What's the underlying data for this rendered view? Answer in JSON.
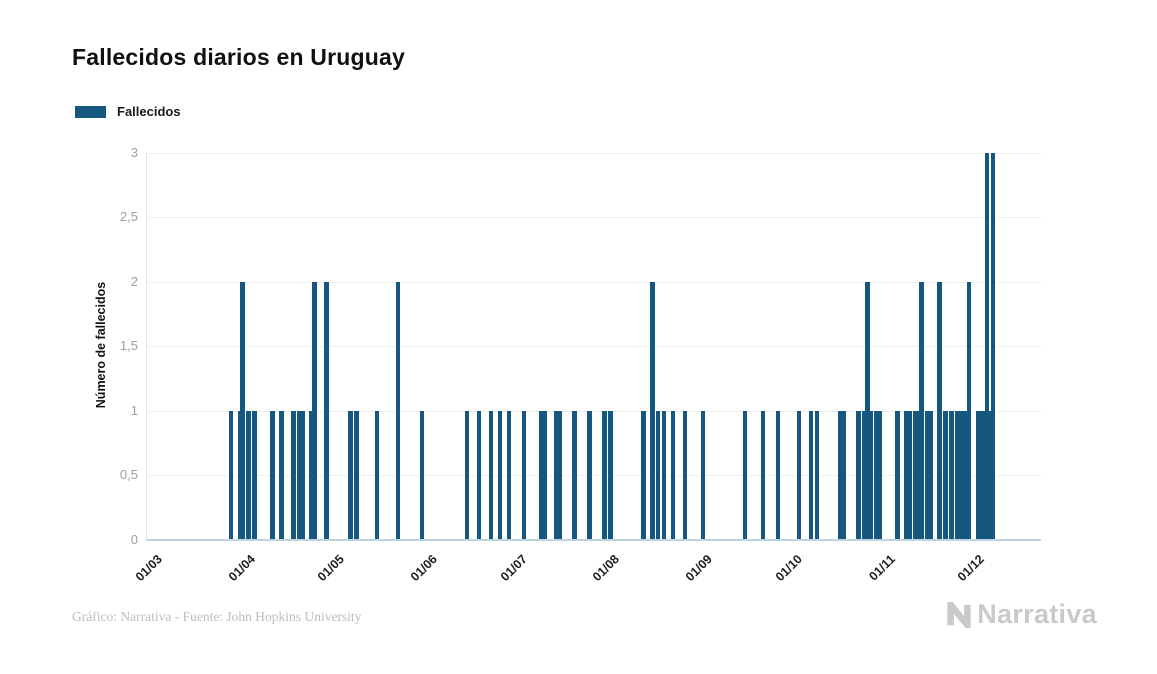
{
  "title": "Fallecidos diarios en Uruguay",
  "legend": {
    "label": "Fallecidos",
    "swatch_color": "#15577E"
  },
  "y_axis": {
    "title": "Número de fallecidos",
    "ticks": [
      {
        "label": "3",
        "value": 3
      },
      {
        "label": "2,5",
        "value": 2.5
      },
      {
        "label": "2",
        "value": 2
      },
      {
        "label": "1,5",
        "value": 1.5
      },
      {
        "label": "1",
        "value": 1
      },
      {
        "label": "0,5",
        "value": 0.5
      },
      {
        "label": "0",
        "value": 0
      }
    ]
  },
  "x_axis": {
    "ticks": [
      {
        "label": "01/03",
        "date": "2020-03-01"
      },
      {
        "label": "01/04",
        "date": "2020-04-01"
      },
      {
        "label": "01/05",
        "date": "2020-05-01"
      },
      {
        "label": "01/06",
        "date": "2020-06-01"
      },
      {
        "label": "01/07",
        "date": "2020-07-01"
      },
      {
        "label": "01/08",
        "date": "2020-08-01"
      },
      {
        "label": "01/09",
        "date": "2020-09-01"
      },
      {
        "label": "01/10",
        "date": "2020-10-01"
      },
      {
        "label": "01/11",
        "date": "2020-11-01"
      },
      {
        "label": "01/12",
        "date": "2020-12-01"
      }
    ]
  },
  "footer": {
    "credit": "Gráfico: Narrativa - Fuente: John Hopkins University"
  },
  "brand": {
    "name": "Narrativa"
  },
  "colors": {
    "bar": "#15577E",
    "grid": "#efefef",
    "axis_line": "#e2e2e2",
    "baseline": "#bdd3e0",
    "y_tick_text": "#9e9e9e",
    "x_tick_text": "#1f1f1f",
    "title_text": "#111111",
    "footer_text": "#bdbdbd",
    "brand_text": "#c9c9c9"
  },
  "chart_data": {
    "type": "bar",
    "title": "Fallecidos diarios en Uruguay",
    "series_name": "Fallecidos",
    "xlabel": "",
    "ylabel": "Número de fallecidos",
    "ylim": [
      0,
      3
    ],
    "x_range": [
      "2020-03-01",
      "2020-12-23"
    ],
    "grid": true,
    "legend_position": "top-left",
    "bar_color": "#15577E",
    "points": [
      {
        "date": "2020-03-28",
        "value": 1
      },
      {
        "date": "2020-03-31",
        "value": 1
      },
      {
        "date": "2020-04-01",
        "value": 2
      },
      {
        "date": "2020-04-03",
        "value": 1
      },
      {
        "date": "2020-04-05",
        "value": 1
      },
      {
        "date": "2020-04-11",
        "value": 1
      },
      {
        "date": "2020-04-14",
        "value": 1
      },
      {
        "date": "2020-04-18",
        "value": 1
      },
      {
        "date": "2020-04-20",
        "value": 1
      },
      {
        "date": "2020-04-21",
        "value": 1
      },
      {
        "date": "2020-04-24",
        "value": 1
      },
      {
        "date": "2020-04-25",
        "value": 2
      },
      {
        "date": "2020-04-29",
        "value": 2
      },
      {
        "date": "2020-05-07",
        "value": 1
      },
      {
        "date": "2020-05-09",
        "value": 1
      },
      {
        "date": "2020-05-16",
        "value": 1
      },
      {
        "date": "2020-05-23",
        "value": 2
      },
      {
        "date": "2020-05-31",
        "value": 1
      },
      {
        "date": "2020-06-15",
        "value": 1
      },
      {
        "date": "2020-06-19",
        "value": 1
      },
      {
        "date": "2020-06-23",
        "value": 1
      },
      {
        "date": "2020-06-26",
        "value": 1
      },
      {
        "date": "2020-06-29",
        "value": 1
      },
      {
        "date": "2020-07-04",
        "value": 1
      },
      {
        "date": "2020-07-10",
        "value": 1
      },
      {
        "date": "2020-07-11",
        "value": 1
      },
      {
        "date": "2020-07-15",
        "value": 1
      },
      {
        "date": "2020-07-16",
        "value": 1
      },
      {
        "date": "2020-07-21",
        "value": 1
      },
      {
        "date": "2020-07-26",
        "value": 1
      },
      {
        "date": "2020-07-31",
        "value": 1
      },
      {
        "date": "2020-08-02",
        "value": 1
      },
      {
        "date": "2020-08-13",
        "value": 1
      },
      {
        "date": "2020-08-16",
        "value": 2
      },
      {
        "date": "2020-08-18",
        "value": 1
      },
      {
        "date": "2020-08-20",
        "value": 1
      },
      {
        "date": "2020-08-23",
        "value": 1
      },
      {
        "date": "2020-08-27",
        "value": 1
      },
      {
        "date": "2020-09-02",
        "value": 1
      },
      {
        "date": "2020-09-16",
        "value": 1
      },
      {
        "date": "2020-09-22",
        "value": 1
      },
      {
        "date": "2020-09-27",
        "value": 1
      },
      {
        "date": "2020-10-04",
        "value": 1
      },
      {
        "date": "2020-10-08",
        "value": 1
      },
      {
        "date": "2020-10-10",
        "value": 1
      },
      {
        "date": "2020-10-18",
        "value": 1
      },
      {
        "date": "2020-10-19",
        "value": 1
      },
      {
        "date": "2020-10-24",
        "value": 1
      },
      {
        "date": "2020-10-26",
        "value": 1
      },
      {
        "date": "2020-10-27",
        "value": 2
      },
      {
        "date": "2020-10-28",
        "value": 1
      },
      {
        "date": "2020-10-30",
        "value": 1
      },
      {
        "date": "2020-10-31",
        "value": 1
      },
      {
        "date": "2020-11-06",
        "value": 1
      },
      {
        "date": "2020-11-09",
        "value": 1
      },
      {
        "date": "2020-11-10",
        "value": 1
      },
      {
        "date": "2020-11-12",
        "value": 1
      },
      {
        "date": "2020-11-13",
        "value": 1
      },
      {
        "date": "2020-11-14",
        "value": 2
      },
      {
        "date": "2020-11-16",
        "value": 1
      },
      {
        "date": "2020-11-17",
        "value": 1
      },
      {
        "date": "2020-11-20",
        "value": 2
      },
      {
        "date": "2020-11-22",
        "value": 1
      },
      {
        "date": "2020-11-24",
        "value": 1
      },
      {
        "date": "2020-11-26",
        "value": 1
      },
      {
        "date": "2020-11-27",
        "value": 1
      },
      {
        "date": "2020-11-28",
        "value": 1
      },
      {
        "date": "2020-11-29",
        "value": 1
      },
      {
        "date": "2020-11-30",
        "value": 2
      },
      {
        "date": "2020-12-03",
        "value": 1
      },
      {
        "date": "2020-12-04",
        "value": 1
      },
      {
        "date": "2020-12-05",
        "value": 1
      },
      {
        "date": "2020-12-06",
        "value": 3
      },
      {
        "date": "2020-12-07",
        "value": 1
      },
      {
        "date": "2020-12-08",
        "value": 3
      }
    ]
  }
}
